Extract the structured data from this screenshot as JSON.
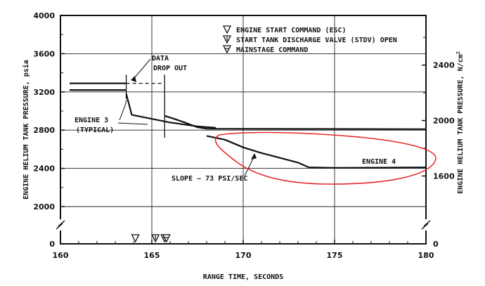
{
  "chart_data": {
    "type": "line",
    "title": "",
    "xlabel": "RANGE TIME, SECONDS",
    "ylabel": "ENGINE HELIUM TANK PRESSURE, psia",
    "y2label": "ENGINE HELIUM TANK PRESSURE, N/cm",
    "y2label_sup": "2",
    "xlim": [
      160,
      180
    ],
    "ylim": [
      0,
      4000
    ],
    "y2lim": [
      0,
      2758
    ],
    "x_ticks": [
      160,
      165,
      170,
      175,
      180
    ],
    "x_tick_labels": [
      "160",
      "165",
      "170",
      "175",
      "180"
    ],
    "y_ticks": [
      0,
      2000,
      2400,
      2800,
      3200,
      3600,
      4000
    ],
    "y_tick_labels": [
      "0",
      "2000",
      "2400",
      "2800",
      "3200",
      "3600",
      "4000"
    ],
    "y2_ticks": [
      0,
      1600,
      2000,
      2400
    ],
    "y2_tick_labels": [
      "0",
      "1600",
      "2000",
      "2400"
    ],
    "axis_break": true,
    "grid": true,
    "series": [
      {
        "name": "ENGINE 3 (TYPICAL)",
        "segments": [
          {
            "x": [
              160.5,
              163.6
            ],
            "y": [
              3290,
              3290
            ],
            "style": "solid"
          },
          {
            "x": [
              163.6,
              165.7
            ],
            "y": [
              3290,
              3290
            ],
            "style": "dashed"
          },
          {
            "x": [
              165.7,
              166.2,
              166.8,
              167.5,
              168.0,
              180.0
            ],
            "y": [
              2950,
              2920,
              2880,
              2830,
              2815,
              2810
            ],
            "style": "solid"
          }
        ]
      },
      {
        "name": "ENGINE 3 (TYPICAL) lower trace",
        "segments": [
          {
            "x": [
              160.5,
              163.6
            ],
            "y": [
              3220,
              3220
            ],
            "style": "solid"
          },
          {
            "x": [
              163.6,
              163.9,
              166.0,
              167.5,
              168.5
            ],
            "y": [
              3180,
              2960,
              2880,
              2840,
              2825
            ],
            "style": "solid"
          }
        ]
      },
      {
        "name": "ENGINE 4",
        "segments": [
          {
            "x": [
              168.0,
              169.0,
              170.0,
              171.0,
              172.0,
              173.0,
              173.6,
              175.0,
              180.0
            ],
            "y": [
              2740,
              2700,
              2620,
              2560,
              2510,
              2460,
              2410,
              2405,
              2410
            ],
            "style": "solid"
          }
        ]
      }
    ],
    "event_markers": {
      "x": [
        164.1,
        165.2,
        165.7,
        165.8
      ],
      "symbols": [
        "ESC",
        "STDV",
        "MAINSTAGE",
        "MAINSTAGE"
      ]
    },
    "legend_entries": [
      "ENGINE START COMMAND (ESC)",
      "START TANK DISCHARGE VALVE (STDV) OPEN",
      "MAINSTAGE COMMAND"
    ],
    "annotations": {
      "data_drop_out_line1": "DATA",
      "data_drop_out_line2": "DROP OUT",
      "engine3_line1": "ENGINE 3",
      "engine3_line2": "(TYPICAL)",
      "engine4": "ENGINE 4",
      "slope": "SLOPE ~ 73 PSI/SEC"
    },
    "highlight": {
      "color": "#e8272a",
      "note": "hand-drawn red ellipse around Engine 4 curve"
    }
  }
}
